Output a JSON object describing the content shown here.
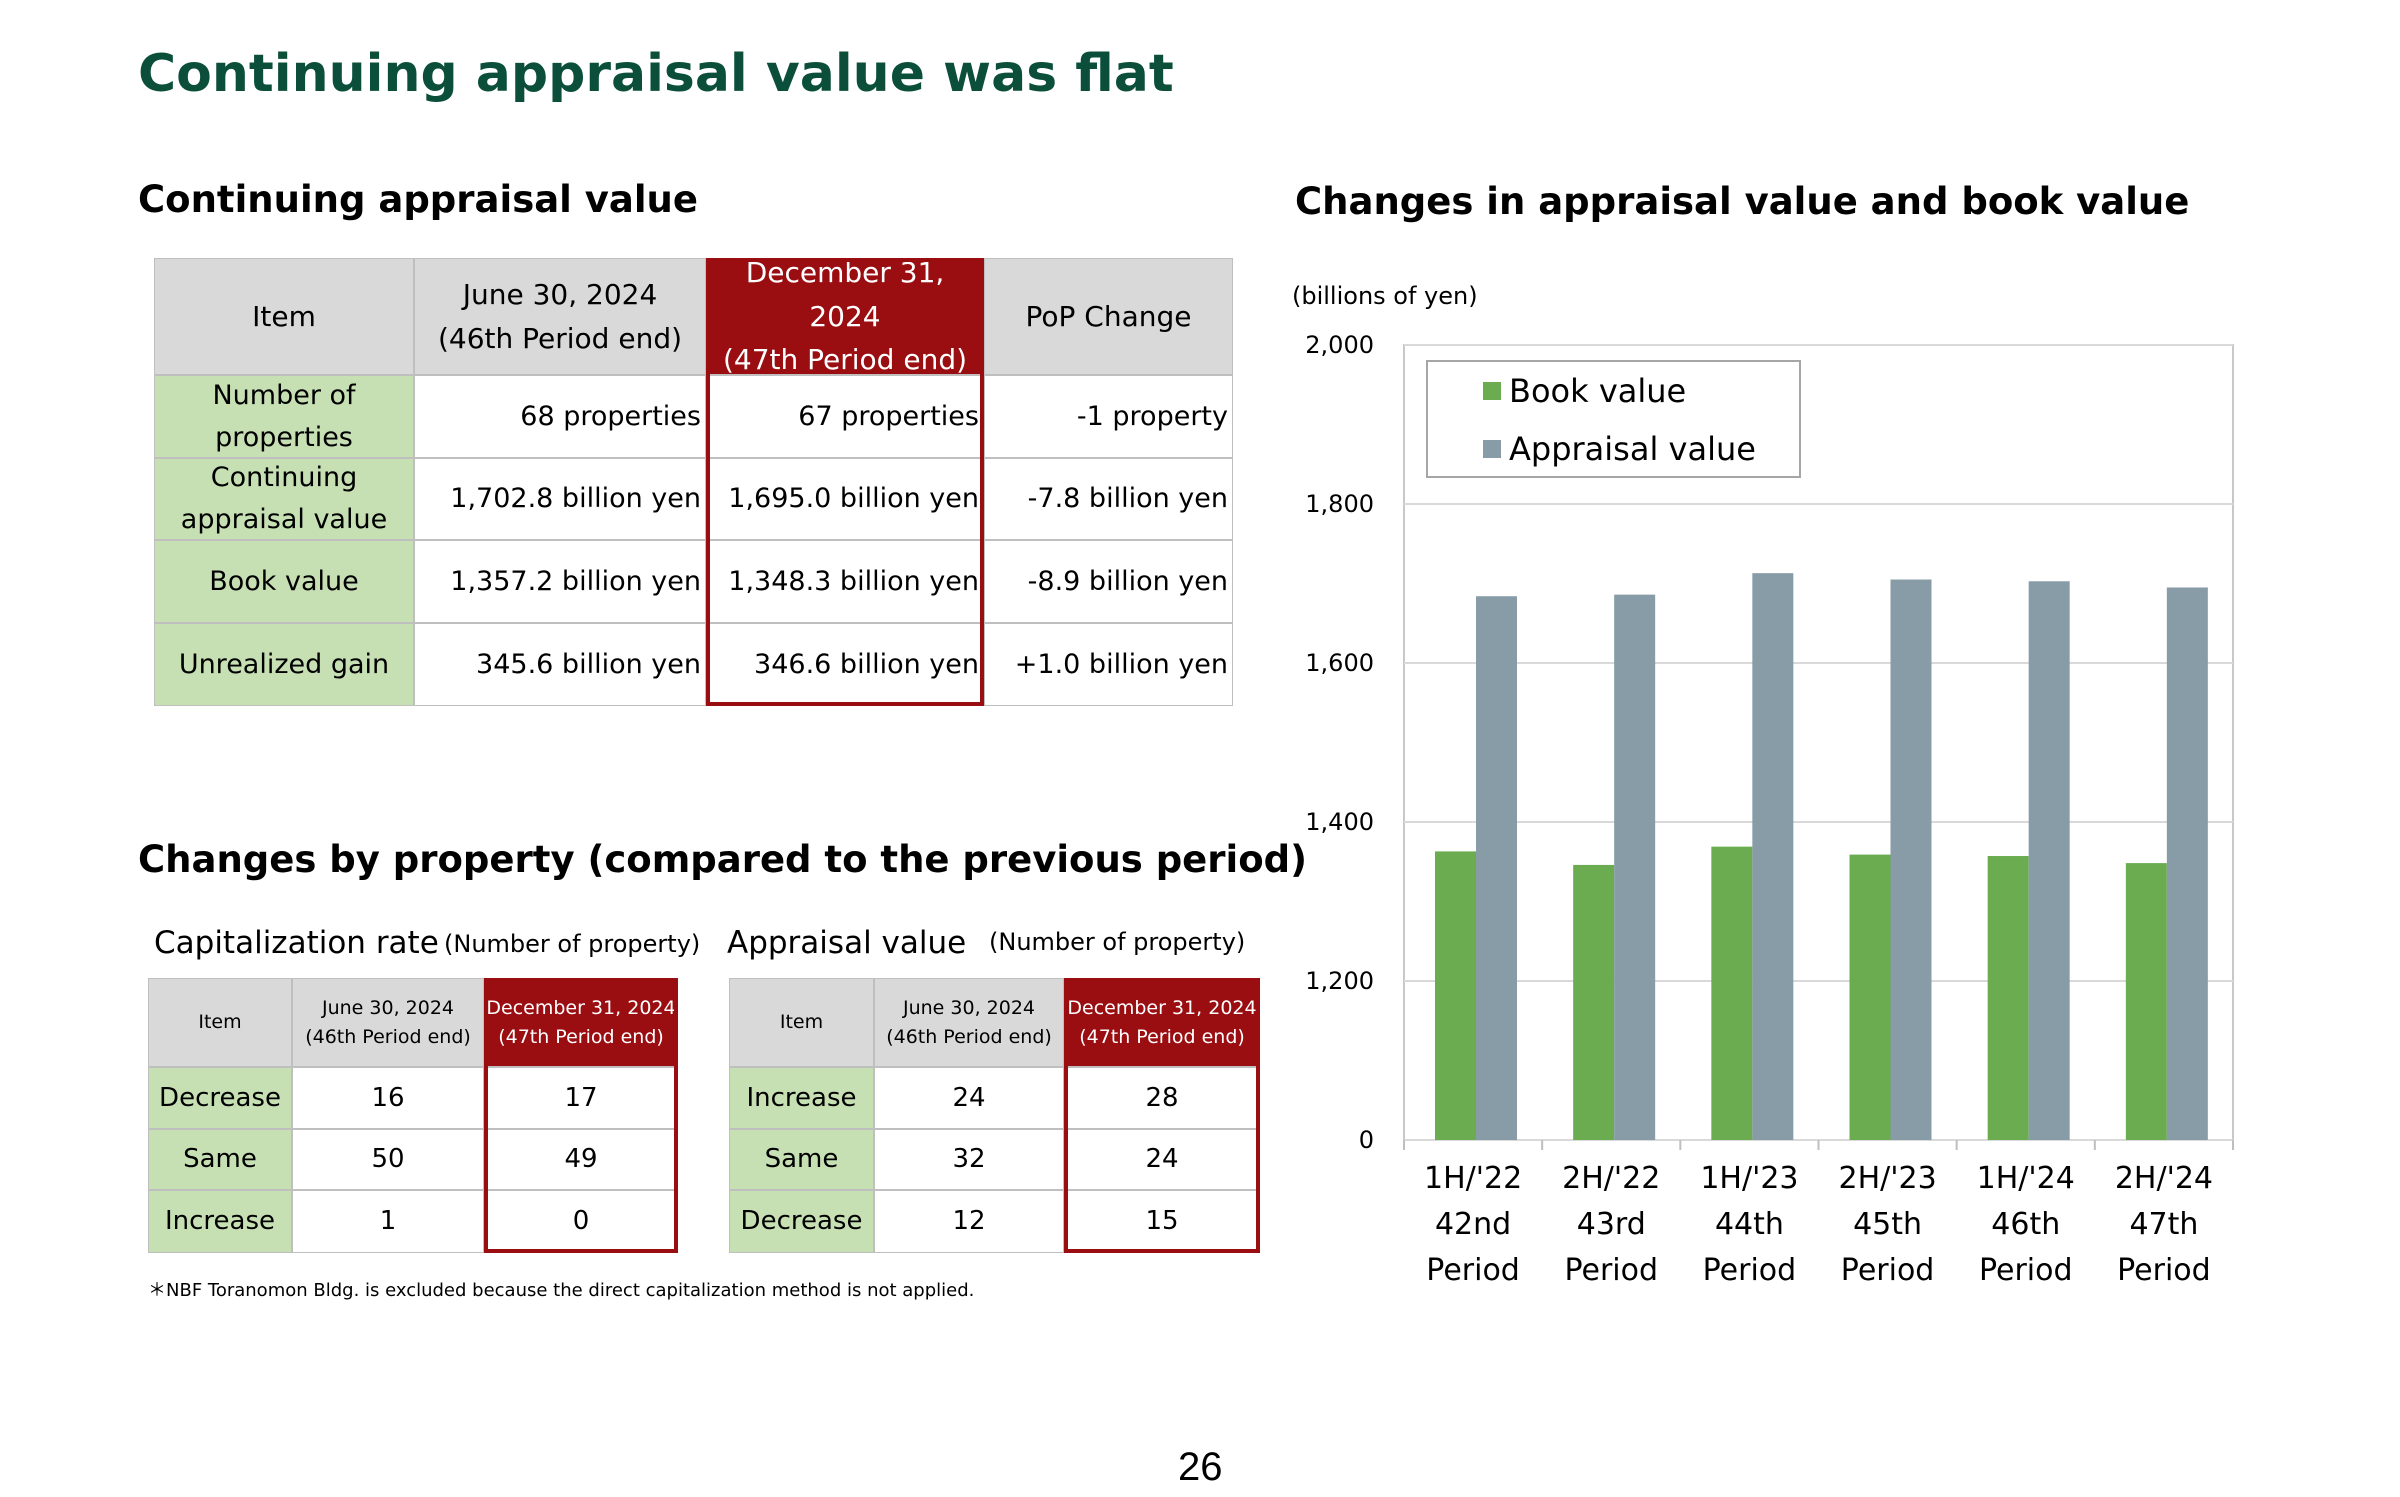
{
  "title": "Continuing appraisal value was flat",
  "appraisal_table": {
    "title": "Continuing appraisal value",
    "header": [
      [
        "Item"
      ],
      [
        "June 30, 2024",
        "(46th Period end)"
      ],
      [
        "December 31, 2024",
        "(47th Period end)"
      ],
      [
        "PoP Change"
      ]
    ],
    "rows": [
      [
        [
          "Number of",
          "properties"
        ],
        [
          "68 properties"
        ],
        [
          "67 properties"
        ],
        [
          "-1 property"
        ]
      ],
      [
        [
          "Continuing",
          "appraisal value"
        ],
        [
          "1,702.8 billion yen"
        ],
        [
          "1,695.0 billion yen"
        ],
        [
          "-7.8 billion yen"
        ]
      ],
      [
        [
          "Book value"
        ],
        [
          "1,357.2 billion yen"
        ],
        [
          "1,348.3 billion yen"
        ],
        [
          "-8.9 billion yen"
        ]
      ],
      [
        [
          "Unrealized gain"
        ],
        [
          "345.6 billion yen"
        ],
        [
          "346.6 billion yen"
        ],
        [
          "+1.0 billion yen"
        ]
      ]
    ]
  },
  "property_changes": {
    "title": "Changes by property (compared to the previous period)",
    "tables": [
      {
        "title": "Capitalization rate",
        "note": "(Number of property)",
        "header": [
          [
            "Item"
          ],
          [
            "June 30, 2024",
            "(46th Period end)"
          ],
          [
            "December 31, 2024",
            "(47th Period end)"
          ]
        ],
        "rows": [
          [
            [
              "Decrease"
            ],
            [
              16
            ],
            [
              17
            ]
          ],
          [
            [
              "Same"
            ],
            [
              50
            ],
            [
              49
            ]
          ],
          [
            [
              "Increase"
            ],
            [
              1
            ],
            [
              0
            ]
          ]
        ]
      },
      {
        "title": "Appraisal value",
        "note": "(Number of property)",
        "header": [
          [
            "Item"
          ],
          [
            "June 30, 2024",
            "(46th Period end)"
          ],
          [
            "December 31, 2024",
            "(47th Period end)"
          ]
        ],
        "rows": [
          [
            [
              "Increase"
            ],
            [
              24
            ],
            [
              28
            ]
          ],
          [
            [
              "Same"
            ],
            [
              32
            ],
            [
              24
            ]
          ],
          [
            [
              "Decrease"
            ],
            [
              12
            ],
            [
              15
            ]
          ]
        ]
      }
    ],
    "footnote": "＊NBF Toranomon Bldg. is excluded because the direct capitalization method is not applied."
  },
  "page_number": 26,
  "chart_data": {
    "type": "bar",
    "title": "Changes in appraisal value and book value",
    "y_label": "(billions of yen)",
    "categories": [
      [
        "1H/'22",
        "42nd",
        "Period"
      ],
      [
        "2H/'22",
        "43rd",
        "Period"
      ],
      [
        "1H/'23",
        "44th",
        "Period"
      ],
      [
        "2H/'23",
        "45th",
        "Period"
      ],
      [
        "1H/'24",
        "46th",
        "Period"
      ],
      [
        "2H/'24",
        "47th",
        "Period"
      ]
    ],
    "series": [
      {
        "name": "Book value",
        "color": "#6aac4f",
        "values": [
          1363,
          1346,
          1369,
          1359,
          1357.2,
          1348.3
        ]
      },
      {
        "name": "Appraisal value",
        "color": "#879ca6",
        "values": [
          1684,
          1686,
          1713,
          1705,
          1702.8,
          1695.0
        ]
      }
    ],
    "ylim": [
      0,
      2000
    ],
    "yticks": [
      0,
      {
        "value": 1200,
        "label": "1,200"
      },
      {
        "value": 1400,
        "label": "1,400"
      },
      {
        "value": 1600,
        "label": "1,600"
      },
      {
        "value": 1800,
        "label": "1,800"
      },
      {
        "value": 2000,
        "label": "2,000"
      }
    ],
    "grid": true,
    "legend": "upper left"
  }
}
